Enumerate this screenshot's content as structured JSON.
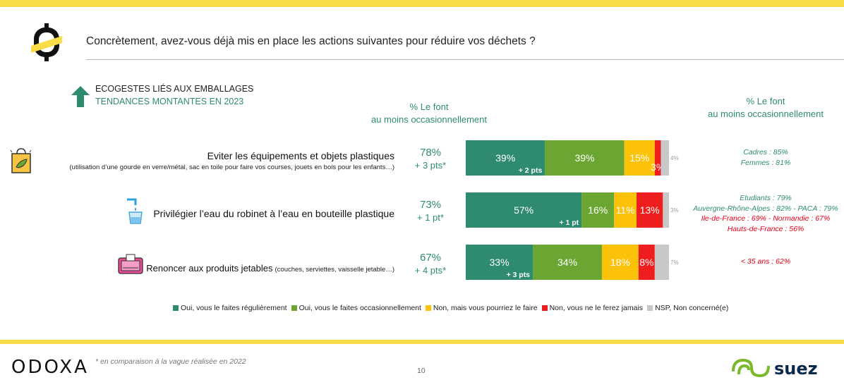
{
  "header": {
    "question": "Concrètement, avez-vous déjà mis en place les actions suivantes pour réduire vos déchets ?"
  },
  "section": {
    "title": "ECOGESTES LIÉS AUX EMBALLAGES",
    "subtitle": "TENDANCES MONTANTES EN 2023",
    "col_left": [
      "% Le font",
      "au moins occasionnellement"
    ],
    "col_right": [
      "% Le font",
      "au moins occasionnellement"
    ]
  },
  "colors": {
    "regulier": "#2e8b6f",
    "occasionnel": "#6aa631",
    "pourriez": "#fcc20a",
    "jamais": "#ee1e1e",
    "nsp": "#c8c8c8",
    "brand_yellow": "#f9dc4a"
  },
  "rows": [
    {
      "icon": "plastic-bag-icon",
      "label_main": "Eviter les équipements et objets plastiques",
      "label_sub": "(utilisation d’une gourde en verre/métal, sac en toile pour faire vos courses, jouets en bois pour les enfants…)",
      "total": "78%",
      "trend": "+ 3 pts*",
      "seg_texts": [
        "39%",
        "39%",
        "15%",
        "3%",
        "4%"
      ],
      "delta": "+ 2 pts",
      "notes": [
        {
          "text": "Cadres : 85%",
          "tone": "green"
        },
        {
          "text": "Femmes : 81%",
          "tone": "green"
        }
      ]
    },
    {
      "icon": "tap-water-icon",
      "label_main": "Privilégier l’eau du robinet à l’eau en bouteille plastique",
      "label_sub": "",
      "total": "73%",
      "trend": "+ 1 pt*",
      "seg_texts": [
        "57%",
        "16%",
        "11%",
        "13%",
        "3%"
      ],
      "delta": "+ 1 pt",
      "notes": [
        {
          "text": "Etudiants : 79%",
          "tone": "green"
        },
        {
          "text": "Auvergne-Rhône-Alpes : 82% - PACA : 79%",
          "tone": "green"
        },
        {
          "text": "Ile-de-France : 69% - Normandie : 67%",
          "tone": "red"
        },
        {
          "text": "Hauts-de-France : 56%",
          "tone": "red"
        }
      ]
    },
    {
      "icon": "wet-wipes-icon",
      "label_main": "Renoncer aux produits jetables",
      "label_sub": "(couches, serviettes, vaisselle jetable…)",
      "total": "67%",
      "trend": "+ 4 pts*",
      "seg_texts": [
        "33%",
        "34%",
        "18%",
        "8%",
        "7%"
      ],
      "delta": "+ 3 pts",
      "notes": [
        {
          "text": "< 35 ans : 62%",
          "tone": "red"
        }
      ]
    }
  ],
  "chart_data": {
    "type": "bar",
    "orientation": "horizontal-stacked-100",
    "categories": [
      "Eviter les équipements et objets plastiques",
      "Privilégier l’eau du robinet à l’eau en bouteille plastique",
      "Renoncer aux produits jetables"
    ],
    "series": [
      {
        "name": "Oui, vous le faites régulièrement",
        "values": [
          39,
          57,
          33
        ]
      },
      {
        "name": "Oui, vous le faites occasionnellement",
        "values": [
          39,
          16,
          34
        ]
      },
      {
        "name": "Non, mais vous pourriez le faire",
        "values": [
          15,
          11,
          18
        ]
      },
      {
        "name": "Non, vous ne le ferez jamais",
        "values": [
          3,
          13,
          8
        ]
      },
      {
        "name": "NSP, Non concerné(e)",
        "values": [
          4,
          3,
          7
        ]
      }
    ],
    "xlim": [
      0,
      100
    ],
    "legend": "bottom"
  },
  "footer": {
    "brand_left": "ODOXA",
    "footnote": "* en comparaison à la vague réalisée en 2022",
    "page": "10",
    "brand_right": "suez"
  }
}
